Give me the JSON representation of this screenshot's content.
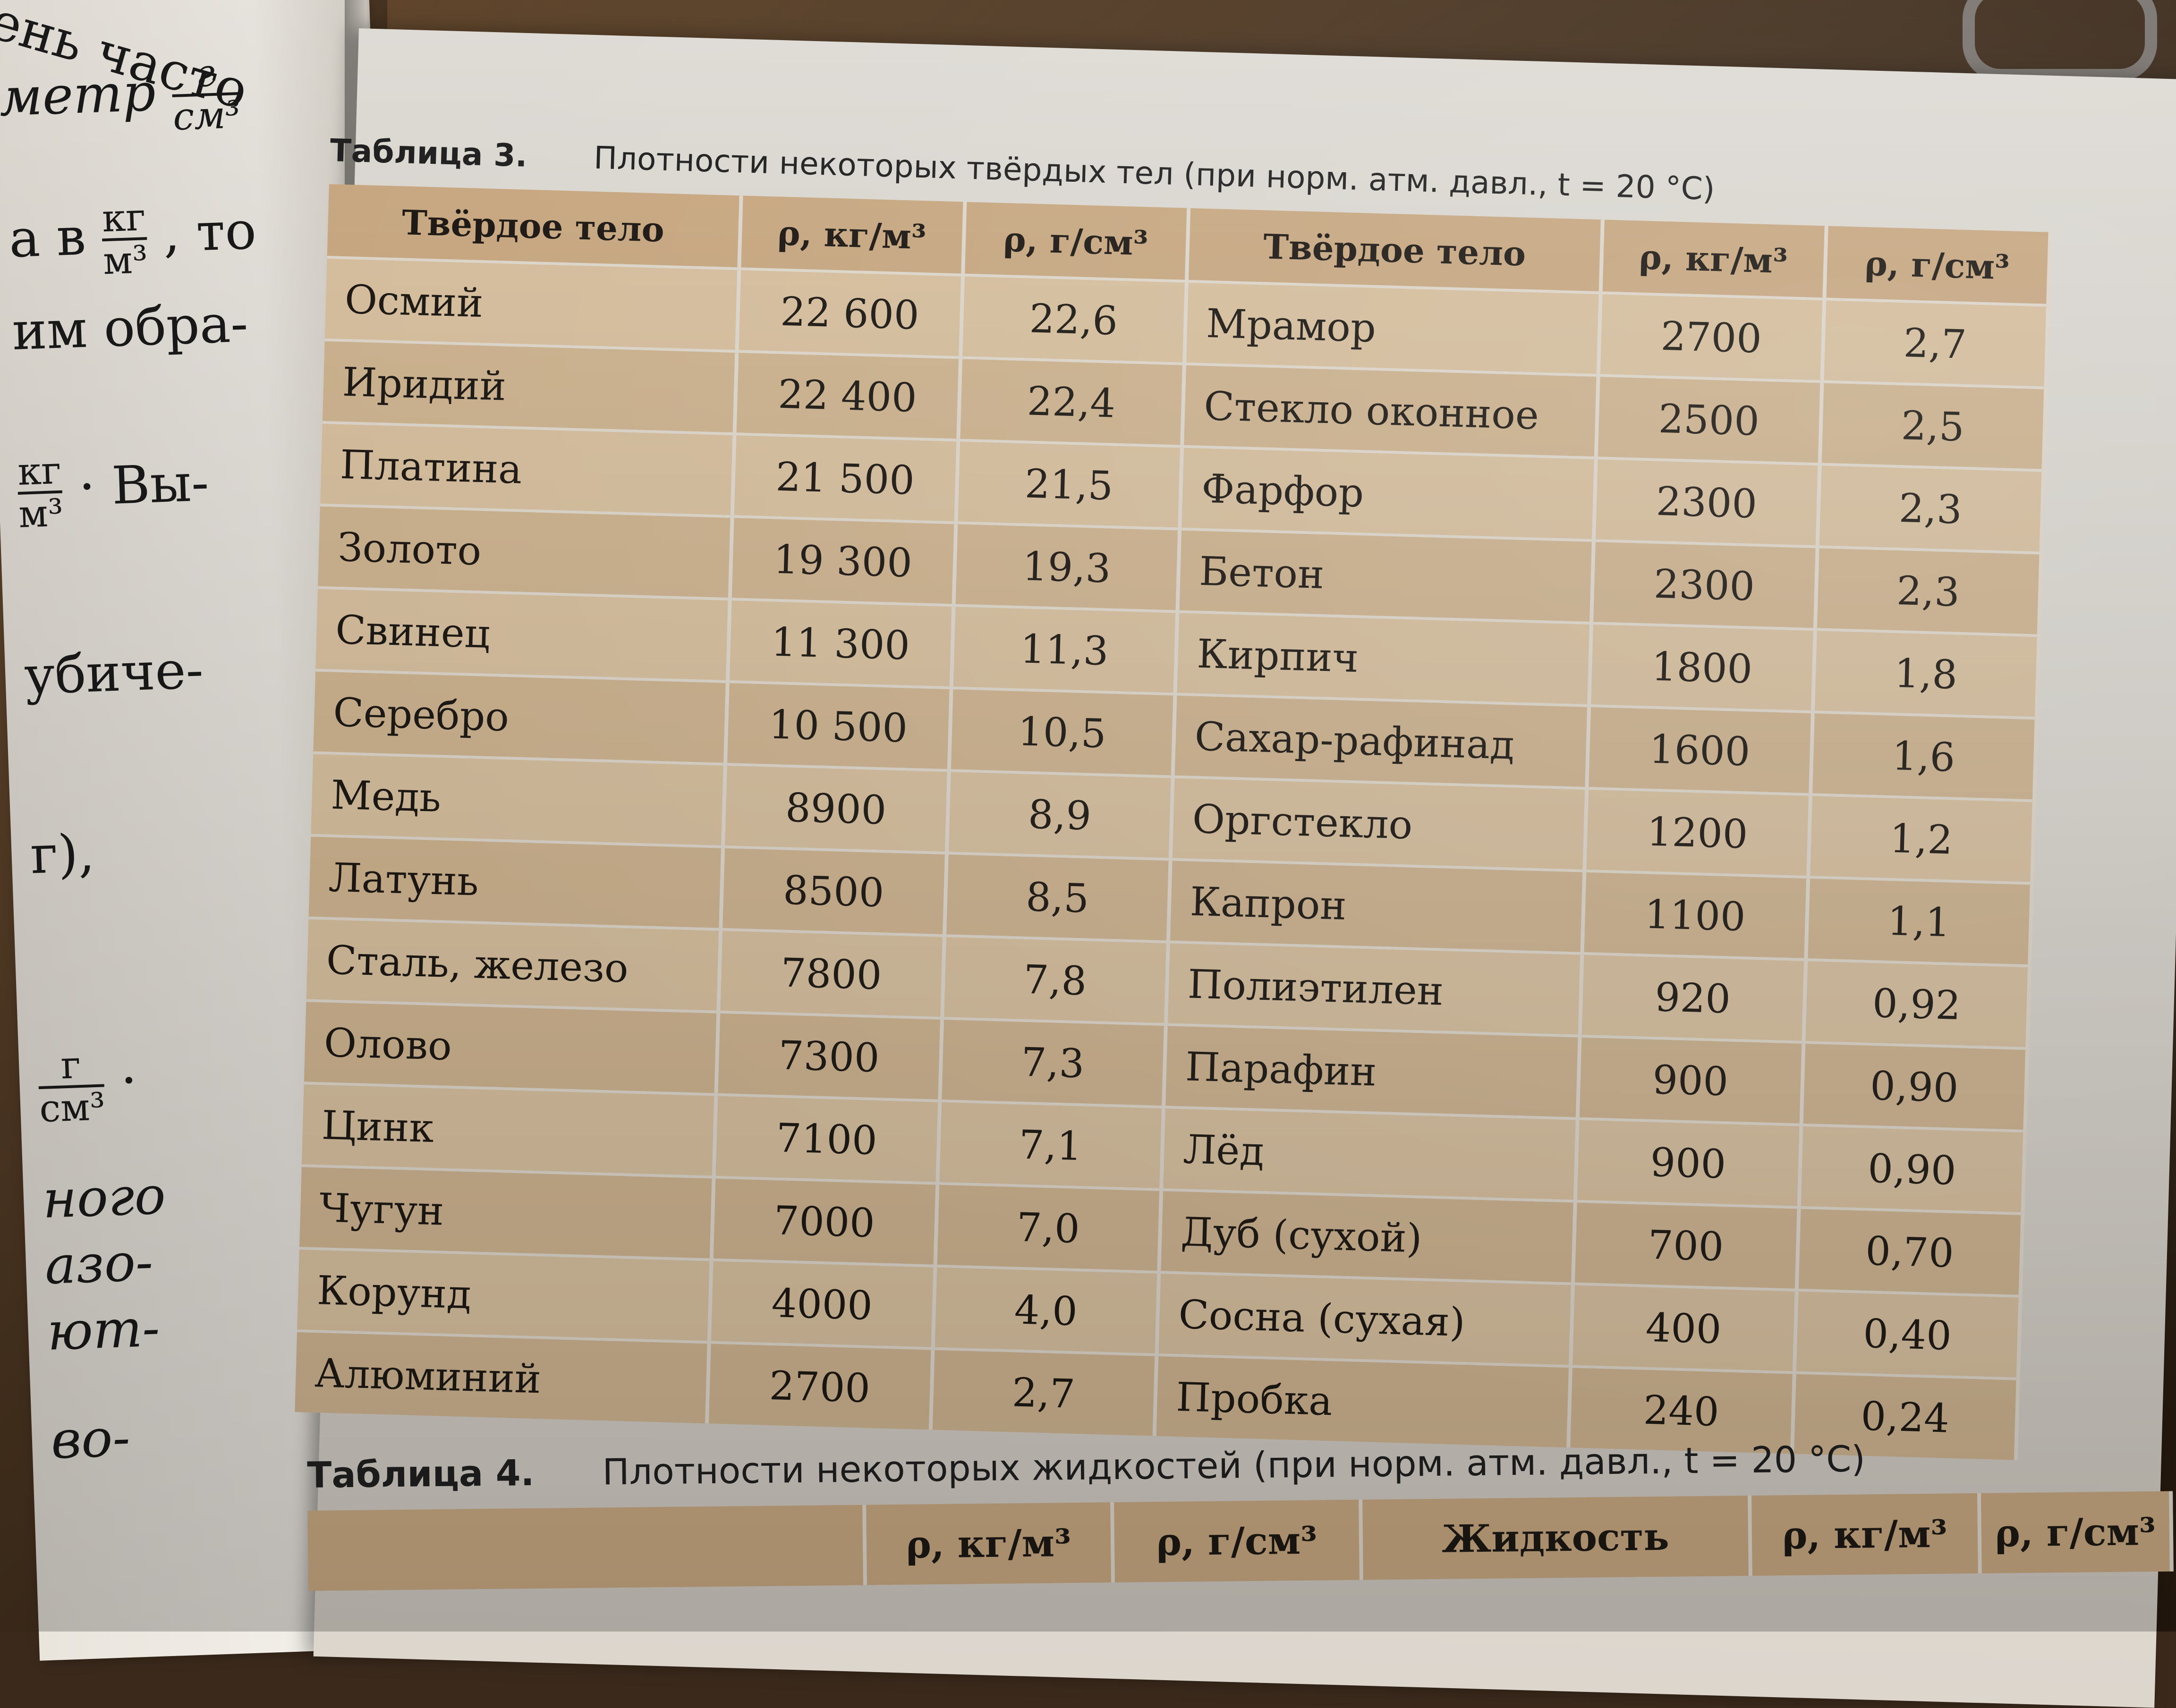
{
  "left_page": {
    "lines": [
      "ень часто",
      "метр",
      "а в",
      ", то",
      "им обра-",
      "· Вы-",
      "убиче-",
      "г),",
      "·",
      "ного",
      "азо-",
      "ют-",
      "во-"
    ],
    "units": {
      "g": "г",
      "cm3": "см³",
      "kg": "кг",
      "m3": "м³"
    }
  },
  "table3": {
    "number": "Таблица 3.",
    "title": "Плотности некоторых твёрдых тел (при норм. атм. давл., t = 20 °C)",
    "headers": [
      "Твёрдое тело",
      "ρ, кг/м³",
      "ρ, г/см³",
      "Твёрдое тело",
      "ρ, кг/м³",
      "ρ, г/см³"
    ],
    "rows": [
      [
        "Осмий",
        "22 600",
        "22,6",
        "Мрамор",
        "2700",
        "2,7"
      ],
      [
        "Иридий",
        "22 400",
        "22,4",
        "Стекло оконное",
        "2500",
        "2,5"
      ],
      [
        "Платина",
        "21 500",
        "21,5",
        "Фарфор",
        "2300",
        "2,3"
      ],
      [
        "Золото",
        "19 300",
        "19,3",
        "Бетон",
        "2300",
        "2,3"
      ],
      [
        "Свинец",
        "11 300",
        "11,3",
        "Кирпич",
        "1800",
        "1,8"
      ],
      [
        "Серебро",
        "10 500",
        "10,5",
        "Сахар-рафинад",
        "1600",
        "1,6"
      ],
      [
        "Медь",
        "8900",
        "8,9",
        "Оргстекло",
        "1200",
        "1,2"
      ],
      [
        "Латунь",
        "8500",
        "8,5",
        "Капрон",
        "1100",
        "1,1"
      ],
      [
        "Сталь, железо",
        "7800",
        "7,8",
        "Полиэтилен",
        "920",
        "0,92"
      ],
      [
        "Олово",
        "7300",
        "7,3",
        "Парафин",
        "900",
        "0,90"
      ],
      [
        "Цинк",
        "7100",
        "7,1",
        "Лёд",
        "900",
        "0,90"
      ],
      [
        "Чугун",
        "7000",
        "7,0",
        "Дуб (сухой)",
        "700",
        "0,70"
      ],
      [
        "Корунд",
        "4000",
        "4,0",
        "Сосна (сухая)",
        "400",
        "0,40"
      ],
      [
        "Алюминий",
        "2700",
        "2,7",
        "Пробка",
        "240",
        "0,24"
      ]
    ]
  },
  "table4": {
    "number": "Таблица 4.",
    "title": "Плотности некоторых жидкостей (при норм. атм. давл., t = 20 °C)",
    "headers": [
      "",
      "ρ, кг/м³",
      "ρ, г/см³",
      "Жидкость",
      "ρ, кг/м³",
      "ρ, г/см³"
    ]
  }
}
